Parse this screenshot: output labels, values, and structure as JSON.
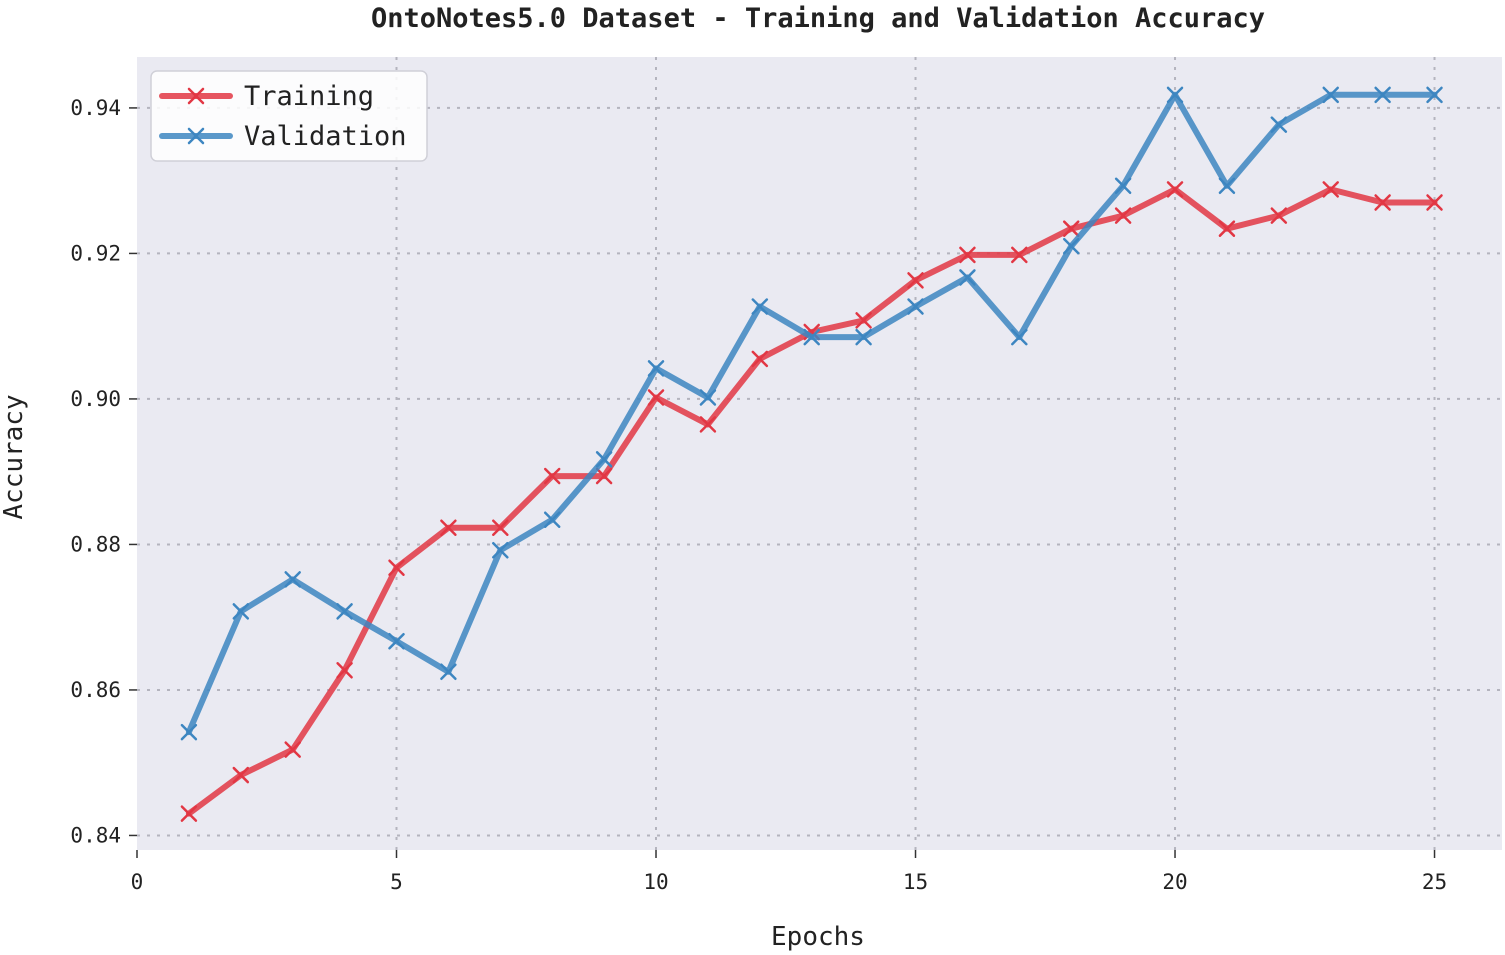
{
  "chart_data": {
    "type": "line",
    "title": "OntoNotes5.0 Dataset - Training and Validation Accuracy",
    "xlabel": "Epochs",
    "ylabel": "Accuracy",
    "xlim": [
      0,
      26.3
    ],
    "ylim": [
      0.838,
      0.947
    ],
    "xticks": [
      0,
      5,
      10,
      15,
      20,
      25
    ],
    "yticks": [
      0.84,
      0.86,
      0.88,
      0.9,
      0.92,
      0.94
    ],
    "ytick_labels": [
      "0.84",
      "0.86",
      "0.88",
      "0.90",
      "0.92",
      "0.94"
    ],
    "grid": true,
    "legend_position": "top-left",
    "x": [
      1,
      2,
      3,
      4,
      5,
      6,
      7,
      8,
      9,
      10,
      11,
      12,
      13,
      14,
      15,
      16,
      17,
      18,
      19,
      20,
      21,
      22,
      23,
      24,
      25
    ],
    "series": [
      {
        "name": "Training",
        "color": "#e23744",
        "marker": "x",
        "values": [
          0.843,
          0.8483,
          0.8518,
          0.8627,
          0.8768,
          0.8823,
          0.8823,
          0.8894,
          0.8894,
          0.9002,
          0.8965,
          0.9055,
          0.9092,
          0.9108,
          0.9163,
          0.9198,
          0.9198,
          0.9234,
          0.9252,
          0.9288,
          0.9234,
          0.9252,
          0.9288,
          0.927,
          0.927
        ]
      },
      {
        "name": "Validation",
        "color": "#3d86c1",
        "marker": "x",
        "values": [
          0.8542,
          0.8708,
          0.8752,
          0.8708,
          0.8667,
          0.8625,
          0.8792,
          0.8834,
          0.8917,
          0.9042,
          0.9002,
          0.9127,
          0.9085,
          0.9085,
          0.9127,
          0.9167,
          0.9085,
          0.921,
          0.9293,
          0.9418,
          0.9293,
          0.9377,
          0.9418,
          0.9418,
          0.9418
        ]
      }
    ]
  }
}
